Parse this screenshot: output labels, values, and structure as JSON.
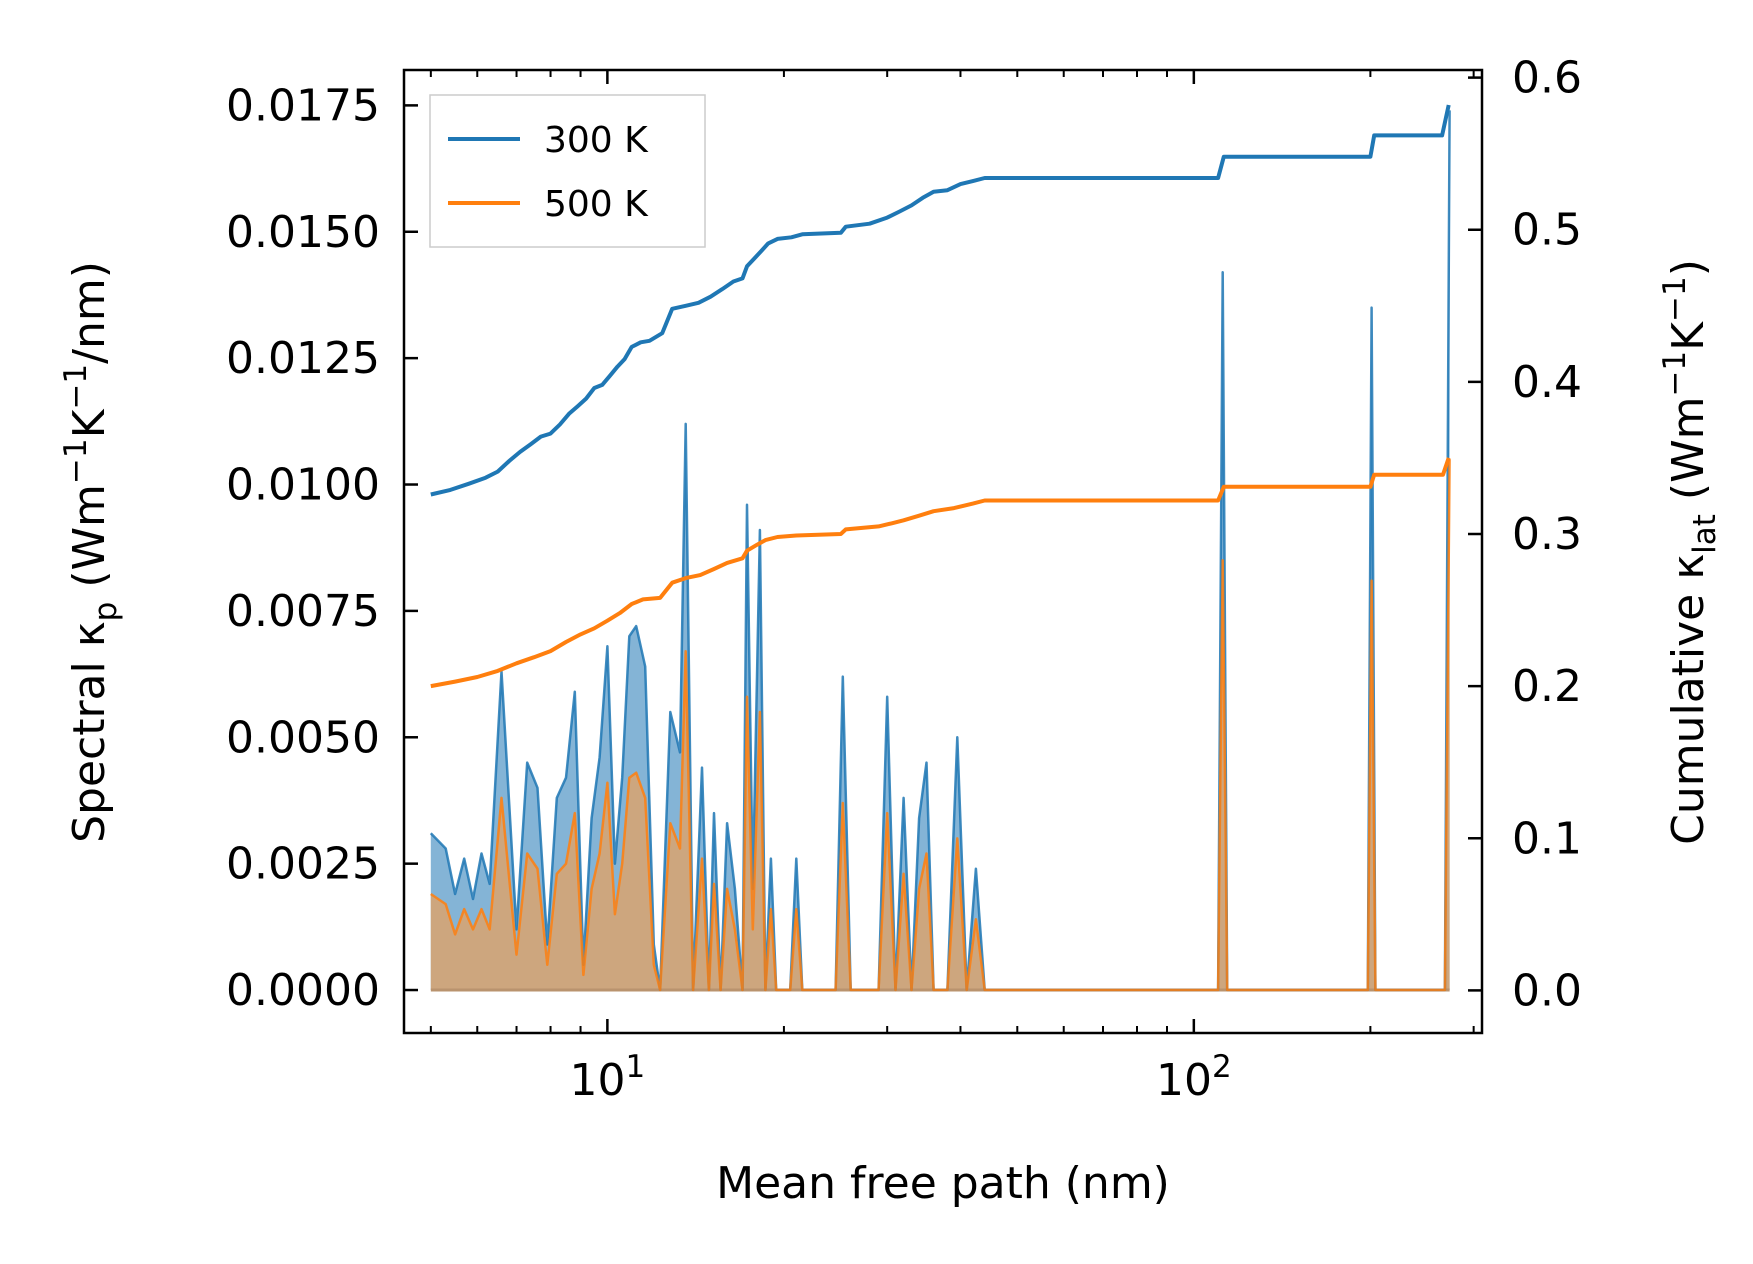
{
  "chart_data": {
    "type": "line",
    "xscale": "log",
    "xlabel": "Mean free path (nm)",
    "ylabel_left": {
      "pre": "Spectral κ",
      "sub": "p",
      "mid": " (Wm",
      "sup1": "−1",
      "mid2": "K",
      "sup2": "−1",
      "post": "/nm)"
    },
    "ylabel_right": {
      "pre": "Cumulative κ",
      "sub": "lat",
      "mid": " (Wm",
      "sup1": "−1",
      "mid2": "K",
      "sup2": "−1",
      "post": ")"
    },
    "xlim": [
      4.5,
      310
    ],
    "ylim_left": [
      -0.00085,
      0.0182
    ],
    "ylim_right": [
      -0.028,
      0.605
    ],
    "x_ticks": [
      {
        "value": 10,
        "base": "10",
        "exp": "1"
      },
      {
        "value": 100,
        "base": "10",
        "exp": "2"
      }
    ],
    "y_ticks_left": [
      "0.0000",
      "0.0025",
      "0.0050",
      "0.0075",
      "0.0100",
      "0.0125",
      "0.0150",
      "0.0175"
    ],
    "y_ticks_left_values": [
      0,
      0.0025,
      0.005,
      0.0075,
      0.01,
      0.0125,
      0.015,
      0.0175
    ],
    "y_ticks_right": [
      "0.0",
      "0.1",
      "0.2",
      "0.3",
      "0.4",
      "0.5",
      "0.6"
    ],
    "y_ticks_right_values": [
      0,
      0.1,
      0.2,
      0.3,
      0.4,
      0.5,
      0.6
    ],
    "legend": {
      "placement": "top-left",
      "entries": [
        "300 K",
        "500 K"
      ]
    },
    "colors": {
      "300K": "#1f77b4",
      "500K": "#ff7f0e",
      "fill_300K": "#1f77b4",
      "fill_500K": "#d9a36e"
    },
    "series": [
      {
        "name": "300 K",
        "spectral": [
          [
            5.0,
            0.0031
          ],
          [
            5.3,
            0.0028
          ],
          [
            5.5,
            0.0019
          ],
          [
            5.7,
            0.0026
          ],
          [
            5.9,
            0.0018
          ],
          [
            6.1,
            0.0027
          ],
          [
            6.3,
            0.0021
          ],
          [
            6.6,
            0.0063
          ],
          [
            7.0,
            0.0012
          ],
          [
            7.3,
            0.0045
          ],
          [
            7.6,
            0.004
          ],
          [
            7.9,
            0.0009
          ],
          [
            8.2,
            0.0038
          ],
          [
            8.5,
            0.0042
          ],
          [
            8.8,
            0.0059
          ],
          [
            9.1,
            0.0005
          ],
          [
            9.4,
            0.0034
          ],
          [
            9.7,
            0.0046
          ],
          [
            10.0,
            0.0068
          ],
          [
            10.3,
            0.0025
          ],
          [
            10.6,
            0.0042
          ],
          [
            10.9,
            0.007
          ],
          [
            11.2,
            0.0072
          ],
          [
            11.6,
            0.0064
          ],
          [
            12.0,
            0.0009
          ],
          [
            12.3,
            0.0
          ],
          [
            12.8,
            0.0055
          ],
          [
            13.3,
            0.0047
          ],
          [
            13.6,
            0.0112
          ],
          [
            14.0,
            0.0
          ],
          [
            14.5,
            0.0044
          ],
          [
            14.9,
            0.0
          ],
          [
            15.2,
            0.0035
          ],
          [
            15.6,
            0.0
          ],
          [
            16.0,
            0.0033
          ],
          [
            16.5,
            0.002
          ],
          [
            17.0,
            0.0
          ],
          [
            17.3,
            0.0096
          ],
          [
            17.7,
            0.002
          ],
          [
            18.2,
            0.0091
          ],
          [
            18.6,
            0.0
          ],
          [
            19.0,
            0.0026
          ],
          [
            19.4,
            0.0
          ],
          [
            20.5,
            0.0
          ],
          [
            21.0,
            0.0026
          ],
          [
            21.5,
            0.0
          ],
          [
            24.5,
            0.0
          ],
          [
            25.2,
            0.0062
          ],
          [
            26.0,
            0.0
          ],
          [
            29.0,
            0.0
          ],
          [
            30.0,
            0.0058
          ],
          [
            31.0,
            0.0
          ],
          [
            32.0,
            0.0038
          ],
          [
            33.0,
            0.0
          ],
          [
            34.0,
            0.0034
          ],
          [
            35.0,
            0.0045
          ],
          [
            36.0,
            0.0
          ],
          [
            38.0,
            0.0
          ],
          [
            39.5,
            0.005
          ],
          [
            41.0,
            0.0
          ],
          [
            42.5,
            0.0024
          ],
          [
            44.0,
            0.0
          ],
          [
            110.0,
            0.0
          ],
          [
            112.0,
            0.0142
          ],
          [
            114.0,
            0.0
          ],
          [
            198.0,
            0.0
          ],
          [
            201.0,
            0.0135
          ],
          [
            204.0,
            0.0
          ],
          [
            268.0,
            0.0
          ],
          [
            273.0,
            0.0174
          ]
        ],
        "cumulative": [
          [
            5.0,
            0.326
          ],
          [
            5.4,
            0.329
          ],
          [
            5.8,
            0.333
          ],
          [
            6.2,
            0.337
          ],
          [
            6.5,
            0.341
          ],
          [
            6.8,
            0.348
          ],
          [
            7.1,
            0.354
          ],
          [
            7.4,
            0.359
          ],
          [
            7.7,
            0.364
          ],
          [
            8.0,
            0.366
          ],
          [
            8.3,
            0.372
          ],
          [
            8.6,
            0.379
          ],
          [
            8.9,
            0.384
          ],
          [
            9.2,
            0.389
          ],
          [
            9.5,
            0.396
          ],
          [
            9.8,
            0.398
          ],
          [
            10.1,
            0.404
          ],
          [
            10.4,
            0.41
          ],
          [
            10.7,
            0.415
          ],
          [
            11.0,
            0.423
          ],
          [
            11.4,
            0.426
          ],
          [
            11.8,
            0.427
          ],
          [
            12.4,
            0.432
          ],
          [
            12.9,
            0.448
          ],
          [
            13.6,
            0.45
          ],
          [
            14.3,
            0.452
          ],
          [
            15.0,
            0.456
          ],
          [
            15.7,
            0.461
          ],
          [
            16.4,
            0.466
          ],
          [
            17.0,
            0.468
          ],
          [
            17.3,
            0.476
          ],
          [
            17.8,
            0.481
          ],
          [
            18.3,
            0.486
          ],
          [
            18.8,
            0.491
          ],
          [
            19.5,
            0.494
          ],
          [
            20.6,
            0.495
          ],
          [
            21.5,
            0.497
          ],
          [
            25.0,
            0.498
          ],
          [
            25.5,
            0.502
          ],
          [
            28.0,
            0.504
          ],
          [
            30.0,
            0.508
          ],
          [
            31.5,
            0.512
          ],
          [
            33.0,
            0.516
          ],
          [
            34.5,
            0.521
          ],
          [
            36.0,
            0.525
          ],
          [
            38.0,
            0.526
          ],
          [
            40.0,
            0.53
          ],
          [
            42.0,
            0.532
          ],
          [
            44.0,
            0.534
          ],
          [
            60.0,
            0.534
          ],
          [
            80.0,
            0.534
          ],
          [
            110.0,
            0.534
          ],
          [
            112.5,
            0.548
          ],
          [
            200.0,
            0.548
          ],
          [
            203.0,
            0.562
          ],
          [
            265.0,
            0.562
          ],
          [
            272.0,
            0.582
          ]
        ]
      },
      {
        "name": "500 K",
        "spectral": [
          [
            5.0,
            0.0019
          ],
          [
            5.3,
            0.0017
          ],
          [
            5.5,
            0.0011
          ],
          [
            5.7,
            0.0016
          ],
          [
            5.9,
            0.0012
          ],
          [
            6.1,
            0.0016
          ],
          [
            6.3,
            0.0012
          ],
          [
            6.6,
            0.0038
          ],
          [
            7.0,
            0.0007
          ],
          [
            7.3,
            0.0027
          ],
          [
            7.6,
            0.0024
          ],
          [
            7.9,
            0.0005
          ],
          [
            8.2,
            0.0023
          ],
          [
            8.5,
            0.0025
          ],
          [
            8.8,
            0.0035
          ],
          [
            9.1,
            0.0003
          ],
          [
            9.4,
            0.002
          ],
          [
            9.7,
            0.0027
          ],
          [
            10.0,
            0.0041
          ],
          [
            10.3,
            0.0015
          ],
          [
            10.6,
            0.0025
          ],
          [
            10.9,
            0.0042
          ],
          [
            11.2,
            0.0043
          ],
          [
            11.6,
            0.0038
          ],
          [
            12.0,
            0.0005
          ],
          [
            12.3,
            0.0
          ],
          [
            12.8,
            0.0033
          ],
          [
            13.3,
            0.0028
          ],
          [
            13.6,
            0.0067
          ],
          [
            14.0,
            0.0
          ],
          [
            14.5,
            0.0026
          ],
          [
            14.9,
            0.0
          ],
          [
            15.2,
            0.0021
          ],
          [
            15.6,
            0.0
          ],
          [
            16.0,
            0.002
          ],
          [
            16.5,
            0.0012
          ],
          [
            17.0,
            0.0
          ],
          [
            17.3,
            0.0058
          ],
          [
            17.7,
            0.0012
          ],
          [
            18.2,
            0.0055
          ],
          [
            18.6,
            0.0
          ],
          [
            19.0,
            0.0016
          ],
          [
            19.4,
            0.0
          ],
          [
            20.5,
            0.0
          ],
          [
            21.0,
            0.0016
          ],
          [
            21.5,
            0.0
          ],
          [
            24.5,
            0.0
          ],
          [
            25.2,
            0.0037
          ],
          [
            26.0,
            0.0
          ],
          [
            29.0,
            0.0
          ],
          [
            30.0,
            0.0035
          ],
          [
            31.0,
            0.0
          ],
          [
            32.0,
            0.0023
          ],
          [
            33.0,
            0.0
          ],
          [
            34.0,
            0.002
          ],
          [
            35.0,
            0.0027
          ],
          [
            36.0,
            0.0
          ],
          [
            38.0,
            0.0
          ],
          [
            39.5,
            0.003
          ],
          [
            41.0,
            0.0
          ],
          [
            42.5,
            0.0014
          ],
          [
            44.0,
            0.0
          ],
          [
            110.0,
            0.0
          ],
          [
            112.0,
            0.0085
          ],
          [
            114.0,
            0.0
          ],
          [
            198.0,
            0.0
          ],
          [
            201.0,
            0.0081
          ],
          [
            204.0,
            0.0
          ],
          [
            268.0,
            0.0
          ],
          [
            273.0,
            0.0105
          ]
        ],
        "cumulative": [
          [
            5.0,
            0.2
          ],
          [
            5.5,
            0.203
          ],
          [
            6.0,
            0.206
          ],
          [
            6.5,
            0.21
          ],
          [
            7.0,
            0.215
          ],
          [
            7.5,
            0.219
          ],
          [
            8.0,
            0.223
          ],
          [
            8.5,
            0.229
          ],
          [
            9.0,
            0.234
          ],
          [
            9.5,
            0.238
          ],
          [
            10.0,
            0.243
          ],
          [
            10.5,
            0.248
          ],
          [
            11.0,
            0.254
          ],
          [
            11.5,
            0.257
          ],
          [
            12.3,
            0.258
          ],
          [
            12.9,
            0.268
          ],
          [
            13.6,
            0.271
          ],
          [
            14.4,
            0.273
          ],
          [
            15.2,
            0.277
          ],
          [
            16.0,
            0.281
          ],
          [
            17.0,
            0.284
          ],
          [
            17.3,
            0.289
          ],
          [
            18.0,
            0.293
          ],
          [
            18.6,
            0.296
          ],
          [
            19.5,
            0.298
          ],
          [
            21.0,
            0.299
          ],
          [
            25.0,
            0.3
          ],
          [
            25.5,
            0.303
          ],
          [
            29.0,
            0.305
          ],
          [
            30.5,
            0.307
          ],
          [
            32.0,
            0.309
          ],
          [
            34.0,
            0.312
          ],
          [
            36.0,
            0.315
          ],
          [
            39.0,
            0.317
          ],
          [
            42.0,
            0.32
          ],
          [
            44.0,
            0.322
          ],
          [
            110.0,
            0.322
          ],
          [
            112.5,
            0.331
          ],
          [
            200.0,
            0.331
          ],
          [
            203.0,
            0.339
          ],
          [
            266.0,
            0.339
          ],
          [
            272.0,
            0.35
          ]
        ]
      }
    ]
  }
}
